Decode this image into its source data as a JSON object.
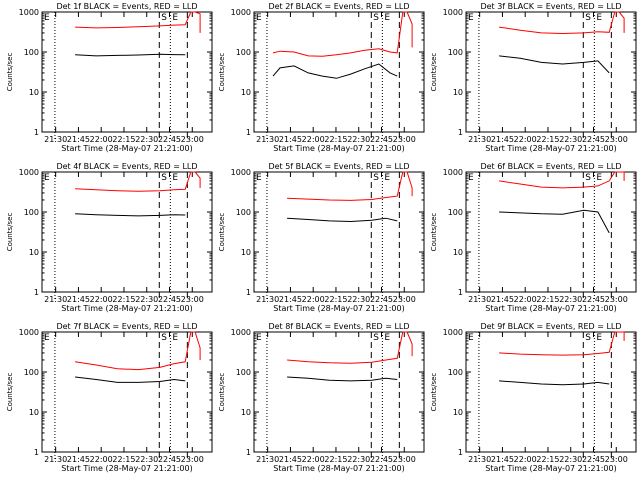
{
  "chart_data": [
    {
      "type": "line",
      "title": "Det 1f BLACK = Events, RED = LLD",
      "xlabel": "Start Time (28-May-07 21:21:00)",
      "ylabel": "Counts/sec",
      "xticks": [
        "21:30",
        "21:45",
        "22:00",
        "22:15",
        "22:30",
        "22:45",
        "23:00"
      ],
      "yticks": [
        "1",
        "10",
        "100",
        "1000"
      ],
      "ylim": [
        1,
        1000
      ],
      "yscale": "log",
      "markers": [
        "S",
        "E"
      ],
      "panel_letter": "E",
      "series": [
        {
          "color": "#000000",
          "x": [
            0,
            15,
            30,
            45,
            60,
            75,
            85,
            93,
            97,
            106,
            112
          ],
          "y": [
            null,
            85,
            80,
            82,
            84,
            88,
            86,
            85,
            null,
            null,
            null
          ]
        },
        {
          "color": "#ff0000",
          "x": [
            0,
            15,
            30,
            45,
            60,
            75,
            85,
            93,
            97,
            100,
            106,
            112
          ],
          "y": [
            null,
            420,
            400,
            410,
            430,
            450,
            470,
            480,
            1000,
            1000,
            900,
            300
          ]
        }
      ]
    },
    {
      "type": "line",
      "title": "Det 2f BLACK = Events, RED = LLD",
      "xlabel": "Start Time (28-May-07 21:21:00)",
      "ylabel": "Counts/sec",
      "xticks": [
        "21:30",
        "21:45",
        "22:00",
        "22:15",
        "22:30",
        "22:45",
        "23:00"
      ],
      "yticks": [
        "1",
        "10",
        "100",
        "1000"
      ],
      "ylim": [
        1,
        1000
      ],
      "yscale": "log",
      "markers": [
        "S",
        "E"
      ],
      "panel_letter": "E",
      "series": [
        {
          "color": "#000000",
          "x": [
            0,
            5,
            10,
            20,
            30,
            40,
            50,
            60,
            70,
            80,
            88,
            93
          ],
          "y": [
            null,
            25,
            40,
            45,
            30,
            25,
            22,
            28,
            38,
            50,
            30,
            25
          ]
        },
        {
          "color": "#ff0000",
          "x": [
            0,
            5,
            10,
            20,
            30,
            40,
            50,
            60,
            70,
            80,
            88,
            93,
            97,
            100,
            106,
            112
          ],
          "y": [
            null,
            95,
            105,
            100,
            80,
            78,
            85,
            95,
            110,
            120,
            100,
            95,
            1000,
            1000,
            500,
            130
          ]
        }
      ]
    },
    {
      "type": "line",
      "title": "Det 3f BLACK = Events, RED = LLD",
      "xlabel": "Start Time (28-May-07 21:21:00)",
      "ylabel": "Counts/sec",
      "xticks": [
        "21:30",
        "21:45",
        "22:00",
        "22:15",
        "22:30",
        "22:45",
        "23:00"
      ],
      "yticks": [
        "1",
        "10",
        "100",
        "1000"
      ],
      "ylim": [
        1,
        1000
      ],
      "yscale": "log",
      "markers": [
        "S",
        "E"
      ],
      "panel_letter": "E",
      "series": [
        {
          "color": "#000000",
          "x": [
            0,
            15,
            30,
            45,
            60,
            75,
            85,
            93
          ],
          "y": [
            null,
            80,
            70,
            55,
            50,
            55,
            60,
            30
          ]
        },
        {
          "color": "#ff0000",
          "x": [
            0,
            15,
            30,
            45,
            60,
            75,
            85,
            93,
            97,
            100,
            106,
            112
          ],
          "y": [
            null,
            420,
            350,
            300,
            290,
            300,
            320,
            310,
            1000,
            1000,
            700,
            300
          ]
        }
      ]
    },
    {
      "type": "line",
      "title": "Det 4f BLACK = Events, RED = LLD",
      "xlabel": "Start Time (28-May-07 21:21:00)",
      "ylabel": "Counts/sec",
      "xticks": [
        "21:30",
        "21:45",
        "22:00",
        "22:15",
        "22:30",
        "22:45",
        "23:00"
      ],
      "yticks": [
        "1",
        "10",
        "100",
        "1000"
      ],
      "ylim": [
        1,
        1000
      ],
      "yscale": "log",
      "markers": [
        "S",
        "E"
      ],
      "panel_letter": "E",
      "series": [
        {
          "color": "#000000",
          "x": [
            0,
            15,
            30,
            45,
            60,
            75,
            85,
            93
          ],
          "y": [
            null,
            90,
            85,
            82,
            80,
            82,
            85,
            84
          ]
        },
        {
          "color": "#ff0000",
          "x": [
            0,
            15,
            30,
            45,
            60,
            75,
            85,
            93,
            97,
            100,
            106,
            112
          ],
          "y": [
            null,
            380,
            360,
            340,
            330,
            340,
            360,
            370,
            1000,
            1000,
            700,
            400
          ]
        }
      ]
    },
    {
      "type": "line",
      "title": "Det 5f BLACK = Events, RED = LLD",
      "xlabel": "Start Time (28-May-07 21:21:00)",
      "ylabel": "Counts/sec",
      "xticks": [
        "21:30",
        "21:45",
        "22:00",
        "22:15",
        "22:30",
        "22:45",
        "23:00"
      ],
      "yticks": [
        "1",
        "10",
        "100",
        "1000"
      ],
      "ylim": [
        1,
        1000
      ],
      "yscale": "log",
      "markers": [
        "S",
        "E"
      ],
      "panel_letter": "E",
      "series": [
        {
          "color": "#000000",
          "x": [
            0,
            15,
            30,
            45,
            60,
            75,
            85,
            93
          ],
          "y": [
            null,
            70,
            65,
            60,
            58,
            62,
            70,
            60
          ]
        },
        {
          "color": "#ff0000",
          "x": [
            0,
            15,
            30,
            45,
            60,
            75,
            85,
            93,
            97,
            100,
            106,
            112
          ],
          "y": [
            null,
            220,
            210,
            200,
            195,
            205,
            230,
            250,
            1000,
            1000,
            400,
            250
          ]
        }
      ]
    },
    {
      "type": "line",
      "title": "Det 6f BLACK = Events, RED = LLD",
      "xlabel": "Start Time (28-May-07 21:21:00)",
      "ylabel": "Counts/sec",
      "xticks": [
        "21:30",
        "21:45",
        "22:00",
        "22:15",
        "22:30",
        "22:45",
        "23:00"
      ],
      "yticks": [
        "1",
        "10",
        "100",
        "1000"
      ],
      "ylim": [
        1,
        1000
      ],
      "yscale": "log",
      "markers": [
        "S",
        "E"
      ],
      "panel_letter": "E",
      "series": [
        {
          "color": "#000000",
          "x": [
            0,
            15,
            30,
            45,
            60,
            75,
            85,
            93
          ],
          "y": [
            null,
            100,
            95,
            90,
            88,
            110,
            100,
            30
          ]
        },
        {
          "color": "#ff0000",
          "x": [
            0,
            15,
            30,
            45,
            60,
            75,
            85,
            93,
            97,
            100,
            106,
            112
          ],
          "y": [
            null,
            600,
            500,
            420,
            400,
            420,
            450,
            600,
            1000,
            1000,
            1000,
            600
          ]
        }
      ]
    },
    {
      "type": "line",
      "title": "Det 7f BLACK = Events, RED = LLD",
      "xlabel": "Start Time (28-May-07 21:21:00)",
      "ylabel": "Counts/sec",
      "xticks": [
        "21:30",
        "21:45",
        "22:00",
        "22:15",
        "22:30",
        "22:45",
        "23:00"
      ],
      "yticks": [
        "1",
        "10",
        "100",
        "1000"
      ],
      "ylim": [
        1,
        1000
      ],
      "yscale": "log",
      "markers": [
        "S",
        "E"
      ],
      "panel_letter": "E",
      "series": [
        {
          "color": "#000000",
          "x": [
            0,
            15,
            30,
            45,
            60,
            75,
            85,
            93
          ],
          "y": [
            null,
            75,
            65,
            55,
            55,
            58,
            65,
            60
          ]
        },
        {
          "color": "#ff0000",
          "x": [
            0,
            15,
            30,
            45,
            60,
            75,
            85,
            93,
            97,
            100,
            106,
            112
          ],
          "y": [
            null,
            180,
            150,
            120,
            115,
            130,
            160,
            180,
            1000,
            1000,
            400,
            200
          ]
        }
      ]
    },
    {
      "type": "line",
      "title": "Det 8f BLACK = Events, RED = LLD",
      "xlabel": "Start Time (28-May-07 21:21:00)",
      "ylabel": "Counts/sec",
      "xticks": [
        "21:30",
        "21:45",
        "22:00",
        "22:15",
        "22:30",
        "22:45",
        "23:00"
      ],
      "yticks": [
        "1",
        "10",
        "100",
        "1000"
      ],
      "ylim": [
        1,
        1000
      ],
      "yscale": "log",
      "markers": [
        "S",
        "E"
      ],
      "panel_letter": "E",
      "series": [
        {
          "color": "#000000",
          "x": [
            0,
            15,
            30,
            45,
            60,
            75,
            85,
            93
          ],
          "y": [
            null,
            75,
            70,
            62,
            60,
            62,
            70,
            65
          ]
        },
        {
          "color": "#ff0000",
          "x": [
            0,
            15,
            30,
            45,
            60,
            75,
            85,
            93,
            97,
            100,
            106,
            112
          ],
          "y": [
            null,
            200,
            180,
            170,
            165,
            175,
            200,
            220,
            1000,
            1000,
            500,
            250
          ]
        }
      ]
    },
    {
      "type": "line",
      "title": "Det 9f BLACK = Events, RED = LLD",
      "xlabel": "Start Time (28-May-07 21:21:00)",
      "ylabel": "Counts/sec",
      "xticks": [
        "21:30",
        "21:45",
        "22:00",
        "22:15",
        "22:30",
        "22:45",
        "23:00"
      ],
      "yticks": [
        "1",
        "10",
        "100",
        "1000"
      ],
      "ylim": [
        1,
        1000
      ],
      "yscale": "log",
      "markers": [
        "S",
        "E"
      ],
      "panel_letter": "E",
      "series": [
        {
          "color": "#000000",
          "x": [
            0,
            15,
            30,
            45,
            60,
            75,
            85,
            93
          ],
          "y": [
            null,
            60,
            55,
            50,
            48,
            50,
            55,
            50
          ]
        },
        {
          "color": "#ff0000",
          "x": [
            0,
            15,
            30,
            45,
            60,
            75,
            85,
            93,
            97,
            100,
            106,
            112
          ],
          "y": [
            null,
            300,
            280,
            270,
            265,
            270,
            290,
            310,
            1000,
            1000,
            1000,
            600
          ]
        }
      ]
    }
  ]
}
